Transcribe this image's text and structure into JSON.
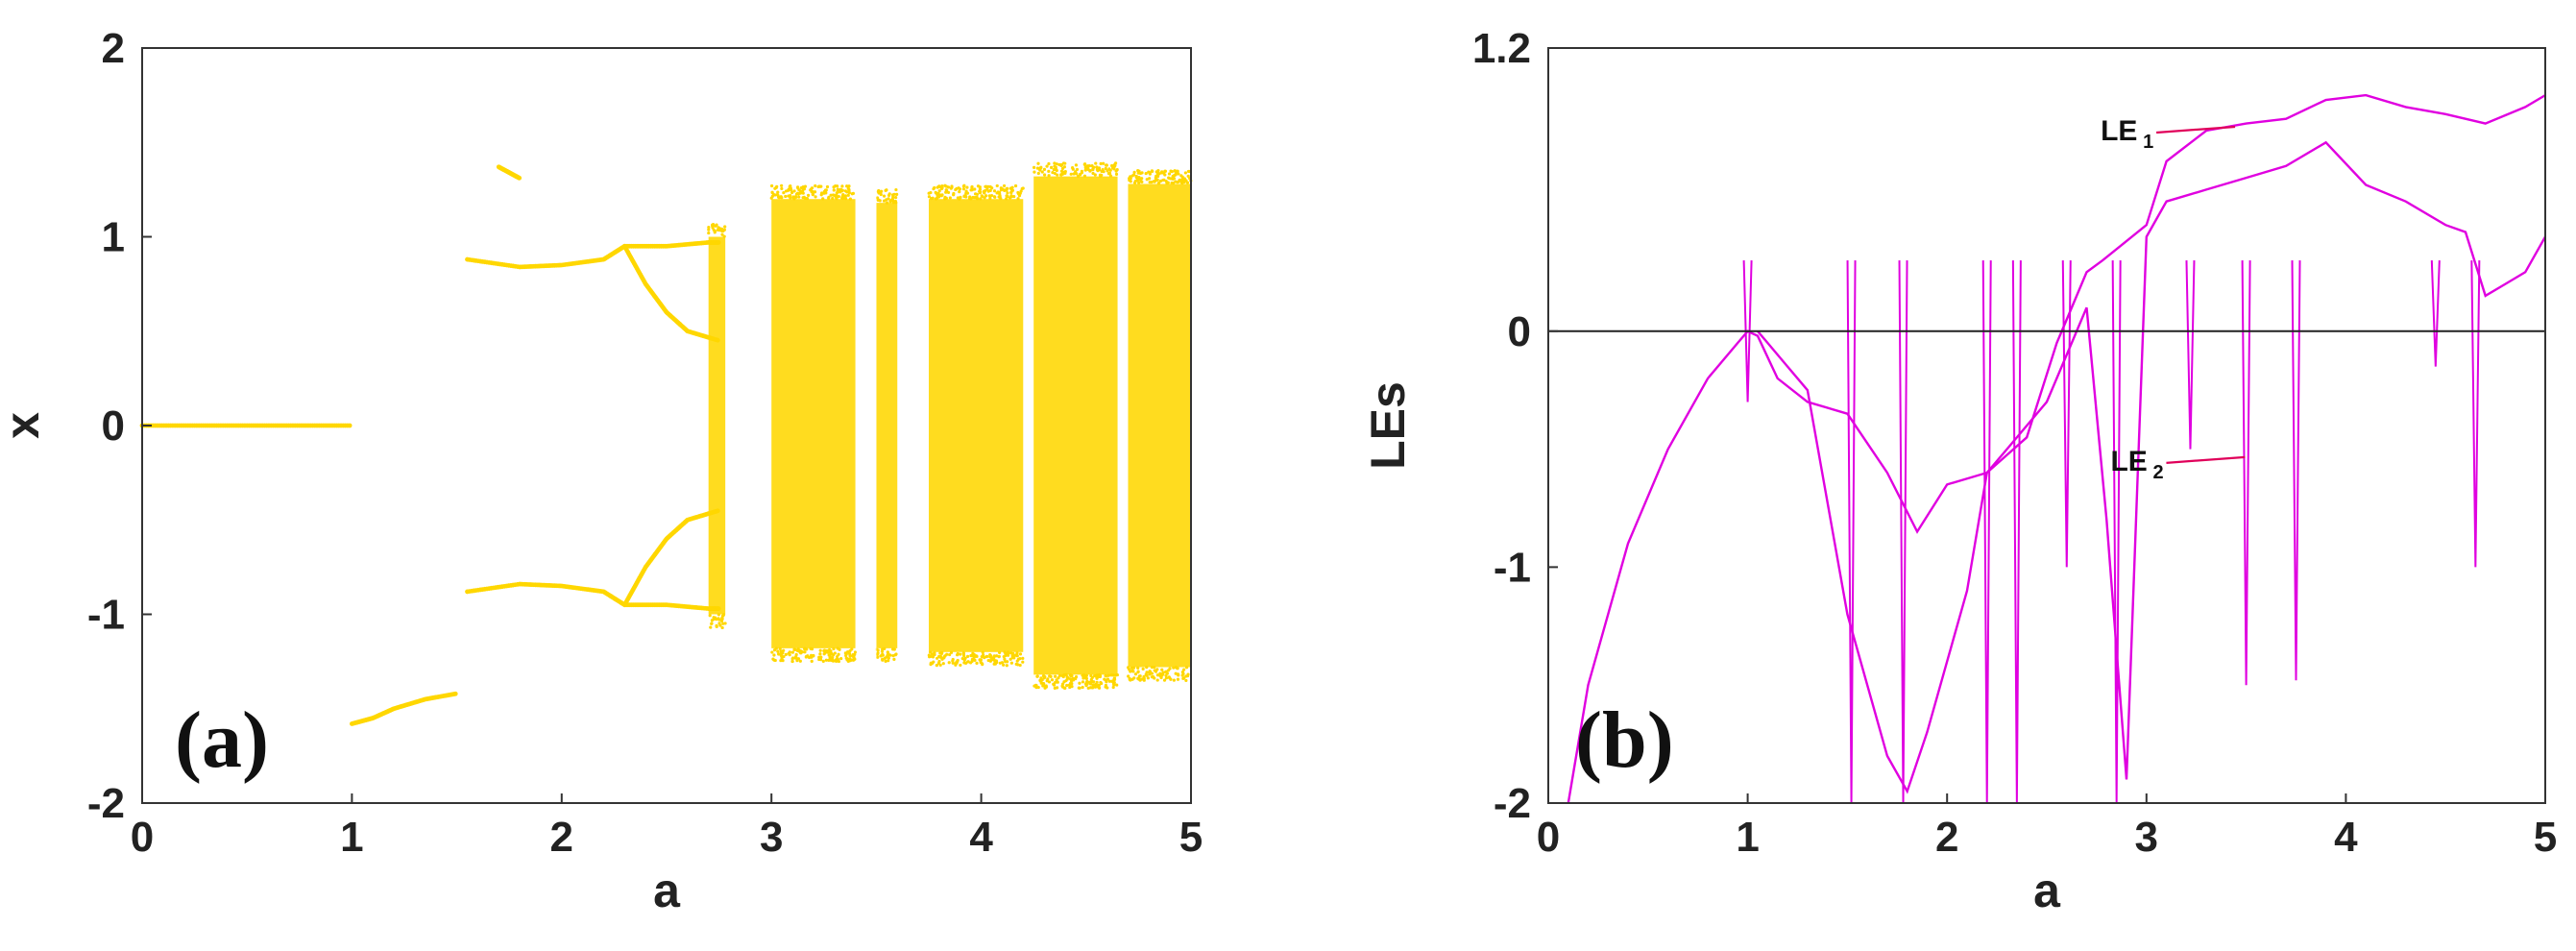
{
  "chart_data": [
    {
      "type": "scatter",
      "panel_label": "(a)",
      "xlabel": "a",
      "ylabel": "x",
      "xlim": [
        0,
        5
      ],
      "ylim": [
        -2,
        2
      ],
      "xticks": [
        "0",
        "1",
        "2",
        "3",
        "4",
        "5"
      ],
      "yticks": [
        "-2",
        "-1",
        "0",
        "1",
        "2"
      ],
      "grid": false,
      "color": "#FFD700",
      "branches": [
        {
          "x": [
            0,
            0.25,
            0.5,
            0.75,
            1.0
          ],
          "y": [
            0,
            0,
            0,
            0,
            0
          ]
        },
        {
          "x": [
            1.55,
            1.8,
            2.0,
            2.2,
            2.3,
            2.5,
            2.7,
            2.75
          ],
          "y": [
            0.88,
            0.84,
            0.85,
            0.88,
            0.95,
            0.95,
            0.97,
            0.97
          ]
        },
        {
          "x": [
            1.55,
            1.8,
            2.0,
            2.2,
            2.3,
            2.5,
            2.7,
            2.75
          ],
          "y": [
            -0.88,
            -0.84,
            -0.85,
            -0.88,
            -0.95,
            -0.95,
            -0.97,
            -0.97
          ]
        },
        {
          "x": [
            2.3,
            2.4,
            2.5,
            2.6,
            2.75
          ],
          "y": [
            0.95,
            0.75,
            0.6,
            0.5,
            0.45
          ]
        },
        {
          "x": [
            2.3,
            2.4,
            2.5,
            2.6,
            2.75
          ],
          "y": [
            -0.95,
            -0.75,
            -0.6,
            -0.5,
            -0.45
          ]
        },
        {
          "x": [
            1.0,
            1.1,
            1.2,
            1.35,
            1.5
          ],
          "y": [
            -1.58,
            -1.55,
            -1.5,
            -1.45,
            -1.42
          ]
        },
        {
          "x": [
            1.7,
            1.75,
            1.8
          ],
          "y": [
            1.37,
            1.34,
            1.31
          ]
        }
      ],
      "chaotic_bands": [
        {
          "x": [
            2.7,
            2.78
          ],
          "y": [
            -1.0,
            1.0
          ]
        },
        {
          "x": [
            3.0,
            3.4
          ],
          "y": [
            -1.18,
            1.2
          ]
        },
        {
          "x": [
            3.5,
            3.6
          ],
          "y": [
            -1.18,
            1.18
          ]
        },
        {
          "x": [
            3.75,
            4.2
          ],
          "y": [
            -1.2,
            1.2
          ]
        },
        {
          "x": [
            4.25,
            4.65
          ],
          "y": [
            -1.32,
            1.32
          ]
        },
        {
          "x": [
            4.7,
            5.0
          ],
          "y": [
            -1.28,
            1.28
          ]
        }
      ]
    },
    {
      "type": "line",
      "panel_label": "(b)",
      "xlabel": "a",
      "ylabel": "LEs",
      "xlim": [
        0,
        5
      ],
      "ylim": [
        -2,
        1.2
      ],
      "xticks": [
        "0",
        "1",
        "2",
        "3",
        "4",
        "5"
      ],
      "yticks": [
        "-2",
        "-1",
        "0",
        "1.2"
      ],
      "ytick_values": [
        -2,
        -1,
        0,
        1.2
      ],
      "grid": false,
      "reference_line_y": 0,
      "color": "#E000E0",
      "annotations": [
        {
          "text": "LE",
          "subscript": "1",
          "x": 3.3,
          "y": 0.85
        },
        {
          "text": "LE",
          "subscript": "2",
          "x": 3.35,
          "y": -0.55
        }
      ],
      "series": [
        {
          "x": [
            0.1,
            0.2,
            0.4,
            0.6,
            0.8,
            0.95,
            1.0,
            1.05,
            1.15,
            1.3,
            1.5,
            1.7,
            1.85,
            2.0,
            2.2,
            2.4,
            2.55,
            2.6,
            2.7,
            2.78,
            3.0,
            3.1,
            3.3,
            3.5,
            3.7,
            3.9,
            4.1,
            4.3,
            4.5,
            4.7,
            4.9,
            5.0
          ],
          "y": [
            -2.0,
            -1.5,
            -0.9,
            -0.5,
            -0.2,
            -0.05,
            0.0,
            -0.02,
            -0.2,
            -0.3,
            -0.35,
            -0.6,
            -0.85,
            -0.65,
            -0.6,
            -0.45,
            -0.05,
            0.05,
            0.25,
            0.3,
            0.45,
            0.72,
            0.85,
            0.88,
            0.9,
            0.98,
            1.0,
            0.95,
            0.92,
            0.88,
            0.95,
            1.0
          ]
        },
        {
          "x": [
            1.05,
            1.1,
            1.2,
            1.3,
            1.5,
            1.7,
            1.8,
            1.9,
            2.0,
            2.1,
            2.2,
            2.3,
            2.5,
            2.7,
            2.8,
            2.9,
            3.0,
            3.1,
            3.3,
            3.5,
            3.7,
            3.9,
            4.1,
            4.3,
            4.5,
            4.6,
            4.7,
            4.8,
            4.9,
            5.0
          ],
          "y": [
            0.0,
            -0.05,
            -0.15,
            -0.25,
            -1.2,
            -1.8,
            -1.95,
            -1.7,
            -1.4,
            -1.1,
            -0.6,
            -0.5,
            -0.3,
            0.1,
            -0.8,
            -1.9,
            0.4,
            0.55,
            0.6,
            0.65,
            0.7,
            0.8,
            0.62,
            0.55,
            0.45,
            0.42,
            0.15,
            0.2,
            0.25,
            0.4
          ]
        }
      ],
      "dips": [
        {
          "x": 1.0,
          "y": -0.3
        },
        {
          "x": 1.52,
          "y": -2.0
        },
        {
          "x": 1.78,
          "y": -2.0
        },
        {
          "x": 2.2,
          "y": -2.0
        },
        {
          "x": 2.35,
          "y": -2.0
        },
        {
          "x": 2.6,
          "y": -1.0
        },
        {
          "x": 2.85,
          "y": -2.0
        },
        {
          "x": 3.22,
          "y": -0.5
        },
        {
          "x": 3.5,
          "y": -1.5
        },
        {
          "x": 3.75,
          "y": -1.48
        },
        {
          "x": 4.45,
          "y": -0.15
        },
        {
          "x": 4.65,
          "y": -1.0
        }
      ]
    }
  ]
}
